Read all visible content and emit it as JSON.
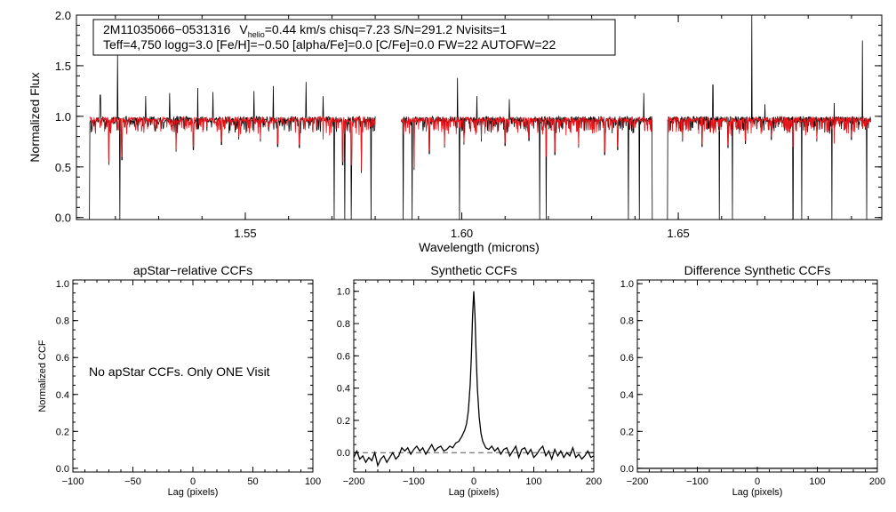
{
  "chart_data": [
    {
      "id": "spectrum",
      "type": "line",
      "xlabel": "Wavelength (microns)",
      "ylabel": "Normalized Flux",
      "xlim": [
        1.511,
        1.697
      ],
      "ylim": [
        -0.02,
        2.0
      ],
      "x_ticks": [
        1.55,
        1.6,
        1.65
      ],
      "x_tick_labels": [
        "1.55",
        "1.60",
        "1.65"
      ],
      "y_ticks": [
        0.0,
        0.5,
        1.0,
        1.5,
        2.0
      ],
      "y_tick_labels": [
        "0.0",
        "0.5",
        "1.0",
        "1.5",
        "2.0"
      ],
      "info": {
        "star_id": "2M11035066−0531316",
        "vhelio_prefix": "V",
        "vhelio_sub": "helio",
        "vhelio_rest": "=0.44 km/s  chisq=7.23  S/N=291.2  Nvisits=1",
        "line2": "Teff=4,750 logg=3.0 [Fe/H]=−0.50 [alpha/Fe]=0.0 [C/Fe]=0.0 FW=22 AUTOFW=22"
      },
      "chips": [
        [
          1.514,
          1.58
        ],
        [
          1.586,
          1.644
        ],
        [
          1.6475,
          1.6945
        ]
      ],
      "series": [
        {
          "color": "#000000",
          "continuum": 0.97,
          "deep_drops": [
            1.514,
            1.521,
            1.5705,
            1.573,
            1.5745,
            1.579,
            1.5865,
            1.5885,
            1.5995,
            1.618,
            1.6195,
            1.6385,
            1.641,
            1.644,
            1.6475,
            1.6595,
            1.6625,
            1.6765,
            1.6785,
            1.6855,
            1.6935
          ],
          "spikes": [
            [
              1.5205,
              1.6
            ],
            [
              1.5165,
              1.21
            ],
            [
              1.527,
              1.2
            ],
            [
              1.5325,
              1.23
            ],
            [
              1.539,
              1.28
            ],
            [
              1.5425,
              1.24
            ],
            [
              1.552,
              1.25
            ],
            [
              1.5565,
              1.3
            ],
            [
              1.564,
              1.34
            ],
            [
              1.568,
              1.2
            ],
            [
              1.599,
              1.38
            ],
            [
              1.6035,
              1.2
            ],
            [
              1.611,
              1.17
            ],
            [
              1.642,
              1.23
            ],
            [
              1.658,
              1.31
            ],
            [
              1.667,
              2.0
            ],
            [
              1.6925,
              1.75
            ],
            [
              1.67,
              1.12
            ],
            [
              1.686,
              1.13
            ]
          ]
        },
        {
          "color": "#e8141a",
          "continuum": 0.97,
          "absorption": [
            [
              1.5185,
              0.55
            ],
            [
              1.5215,
              0.6
            ],
            [
              1.534,
              0.68
            ],
            [
              1.538,
              0.7
            ],
            [
              1.5445,
              0.75
            ],
            [
              1.5485,
              0.8
            ],
            [
              1.5535,
              0.78
            ],
            [
              1.5575,
              0.73
            ],
            [
              1.5625,
              0.72
            ],
            [
              1.568,
              0.77
            ],
            [
              1.5725,
              0.55
            ],
            [
              1.5745,
              0.52
            ],
            [
              1.5768,
              0.47
            ],
            [
              1.589,
              0.5
            ],
            [
              1.5925,
              0.66
            ],
            [
              1.596,
              0.72
            ],
            [
              1.6005,
              0.75
            ],
            [
              1.6045,
              0.78
            ],
            [
              1.61,
              0.74
            ],
            [
              1.6155,
              0.79
            ],
            [
              1.6195,
              0.6
            ],
            [
              1.6215,
              0.65
            ],
            [
              1.627,
              0.72
            ],
            [
              1.633,
              0.65
            ],
            [
              1.636,
              0.7
            ],
            [
              1.651,
              0.78
            ],
            [
              1.6555,
              0.73
            ],
            [
              1.6615,
              0.72
            ],
            [
              1.6655,
              0.76
            ],
            [
              1.6715,
              0.8
            ],
            [
              1.6765,
              0.7
            ],
            [
              1.682,
              0.78
            ],
            [
              1.686,
              0.73
            ],
            [
              1.69,
              0.8
            ]
          ]
        }
      ]
    },
    {
      "id": "apstar-ccf",
      "type": "line",
      "title": "apStar−relative CCFs",
      "xlabel": "Lag (pixels)",
      "ylabel": "Normalized CCF",
      "xlim": [
        -100,
        100
      ],
      "ylim": [
        -0.02,
        1.02
      ],
      "x_ticks": [
        -100,
        -50,
        0,
        50,
        100
      ],
      "x_tick_labels": [
        "−100",
        "−50",
        "0",
        "50",
        "100"
      ],
      "y_ticks": [
        0.0,
        0.2,
        0.4,
        0.6,
        0.8,
        1.0
      ],
      "y_tick_labels": [
        "0.0",
        "0.2",
        "0.4",
        "0.6",
        "0.8",
        "1.0"
      ],
      "note": "No apStar CCFs.  Only ONE Visit",
      "series": []
    },
    {
      "id": "synthetic-ccf",
      "type": "line",
      "title": "Synthetic CCFs",
      "xlabel": "Lag (pixels)",
      "ylabel": "",
      "xlim": [
        -200,
        200
      ],
      "ylim": [
        -0.12,
        1.07
      ],
      "x_ticks": [
        -200,
        -100,
        0,
        100,
        200
      ],
      "x_tick_labels": [
        "−200",
        "−100",
        "0",
        "100",
        "200"
      ],
      "y_ticks": [
        0.0,
        0.2,
        0.4,
        0.6,
        0.8,
        1.0
      ],
      "y_tick_labels": [
        "0.0",
        "0.2",
        "0.4",
        "0.6",
        "0.8",
        "1.0"
      ],
      "baseline": 0.0,
      "series": [
        {
          "color": "#000000",
          "x": [
            -200,
            -195,
            -190,
            -185,
            -180,
            -175,
            -170,
            -165,
            -160,
            -155,
            -150,
            -145,
            -140,
            -135,
            -130,
            -125,
            -120,
            -115,
            -110,
            -105,
            -100,
            -95,
            -90,
            -85,
            -80,
            -75,
            -70,
            -65,
            -60,
            -55,
            -50,
            -45,
            -40,
            -35,
            -30,
            -25,
            -20,
            -15,
            -12,
            -9,
            -6,
            -4,
            -2,
            0,
            2,
            4,
            6,
            9,
            12,
            15,
            20,
            25,
            30,
            35,
            40,
            45,
            50,
            55,
            60,
            65,
            70,
            75,
            80,
            85,
            90,
            95,
            100,
            105,
            110,
            115,
            120,
            125,
            130,
            135,
            140,
            145,
            150,
            155,
            160,
            165,
            170,
            175,
            180,
            185,
            190,
            195,
            200
          ],
          "y": [
            -0.03,
            0.01,
            -0.04,
            -0.02,
            -0.06,
            -0.03,
            -0.05,
            0.0,
            -0.08,
            -0.04,
            -0.02,
            -0.06,
            -0.03,
            0.0,
            -0.04,
            -0.02,
            0.03,
            0.01,
            0.03,
            -0.01,
            0.02,
            0.04,
            0.01,
            0.03,
            -0.01,
            0.02,
            0.05,
            0.01,
            0.03,
            0.04,
            0.01,
            0.02,
            0.04,
            0.03,
            0.06,
            0.07,
            0.1,
            0.14,
            0.18,
            0.26,
            0.42,
            0.6,
            0.85,
            1.0,
            0.85,
            0.6,
            0.4,
            0.22,
            0.12,
            0.07,
            0.03,
            0.02,
            0.04,
            0.01,
            0.03,
            -0.01,
            0.02,
            0.03,
            -0.02,
            0.01,
            0.04,
            -0.03,
            0.02,
            0.03,
            -0.01,
            0.02,
            -0.03,
            -0.01,
            0.02,
            0.04,
            -0.02,
            0.01,
            -0.04,
            0.02,
            -0.02,
            0.01,
            -0.03,
            0.0,
            -0.02,
            0.03,
            -0.03,
            -0.01,
            -0.04,
            -0.02,
            0.01,
            -0.03,
            -0.02
          ]
        }
      ]
    },
    {
      "id": "difference-ccf",
      "type": "line",
      "title": "Difference Synthetic CCFs",
      "xlabel": "Lag (pixels)",
      "ylabel": "",
      "xlim": [
        -200,
        200
      ],
      "ylim": [
        -0.02,
        1.02
      ],
      "x_ticks": [
        -200,
        -100,
        0,
        100,
        200
      ],
      "x_tick_labels": [
        "−200",
        "−100",
        "0",
        "100",
        "200"
      ],
      "y_ticks": [
        0.0,
        0.2,
        0.4,
        0.6,
        0.8,
        1.0
      ],
      "y_tick_labels": [
        "0.0",
        "0.2",
        "0.4",
        "0.6",
        "0.8",
        "1.0"
      ],
      "series": [
        {
          "color": "#000000",
          "x": [
            -200,
            200
          ],
          "y": [
            0.0,
            0.0
          ]
        }
      ]
    }
  ]
}
